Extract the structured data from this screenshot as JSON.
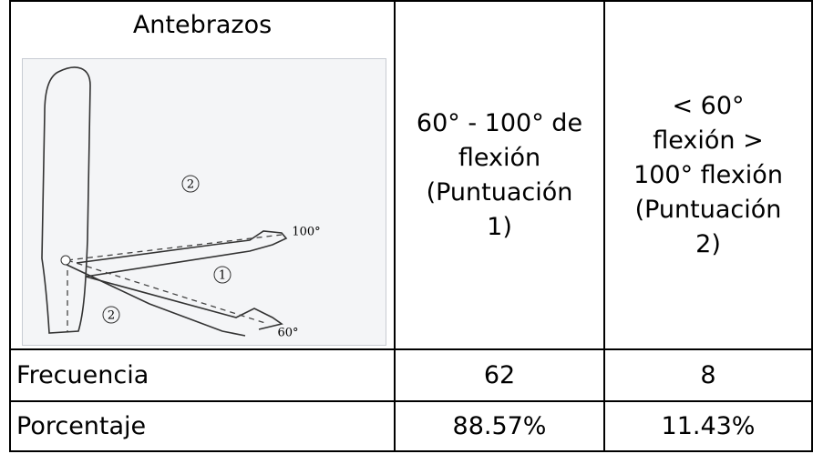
{
  "header": {
    "title": "Antebrazos",
    "columns": [
      [
        "60° - 100° de",
        "flexión",
        "(Puntuación",
        "1)"
      ],
      [
        "< 60°",
        "flexión >",
        "100° flexión",
        "(Puntuación",
        "2)"
      ]
    ]
  },
  "figure": {
    "labels": [
      "2",
      "100°",
      "1",
      "2",
      "60°"
    ]
  },
  "table": {
    "rows": [
      [
        "Frecuencia",
        62,
        8
      ],
      [
        "Porcentaje",
        "88.57%",
        "11.43%"
      ]
    ]
  }
}
